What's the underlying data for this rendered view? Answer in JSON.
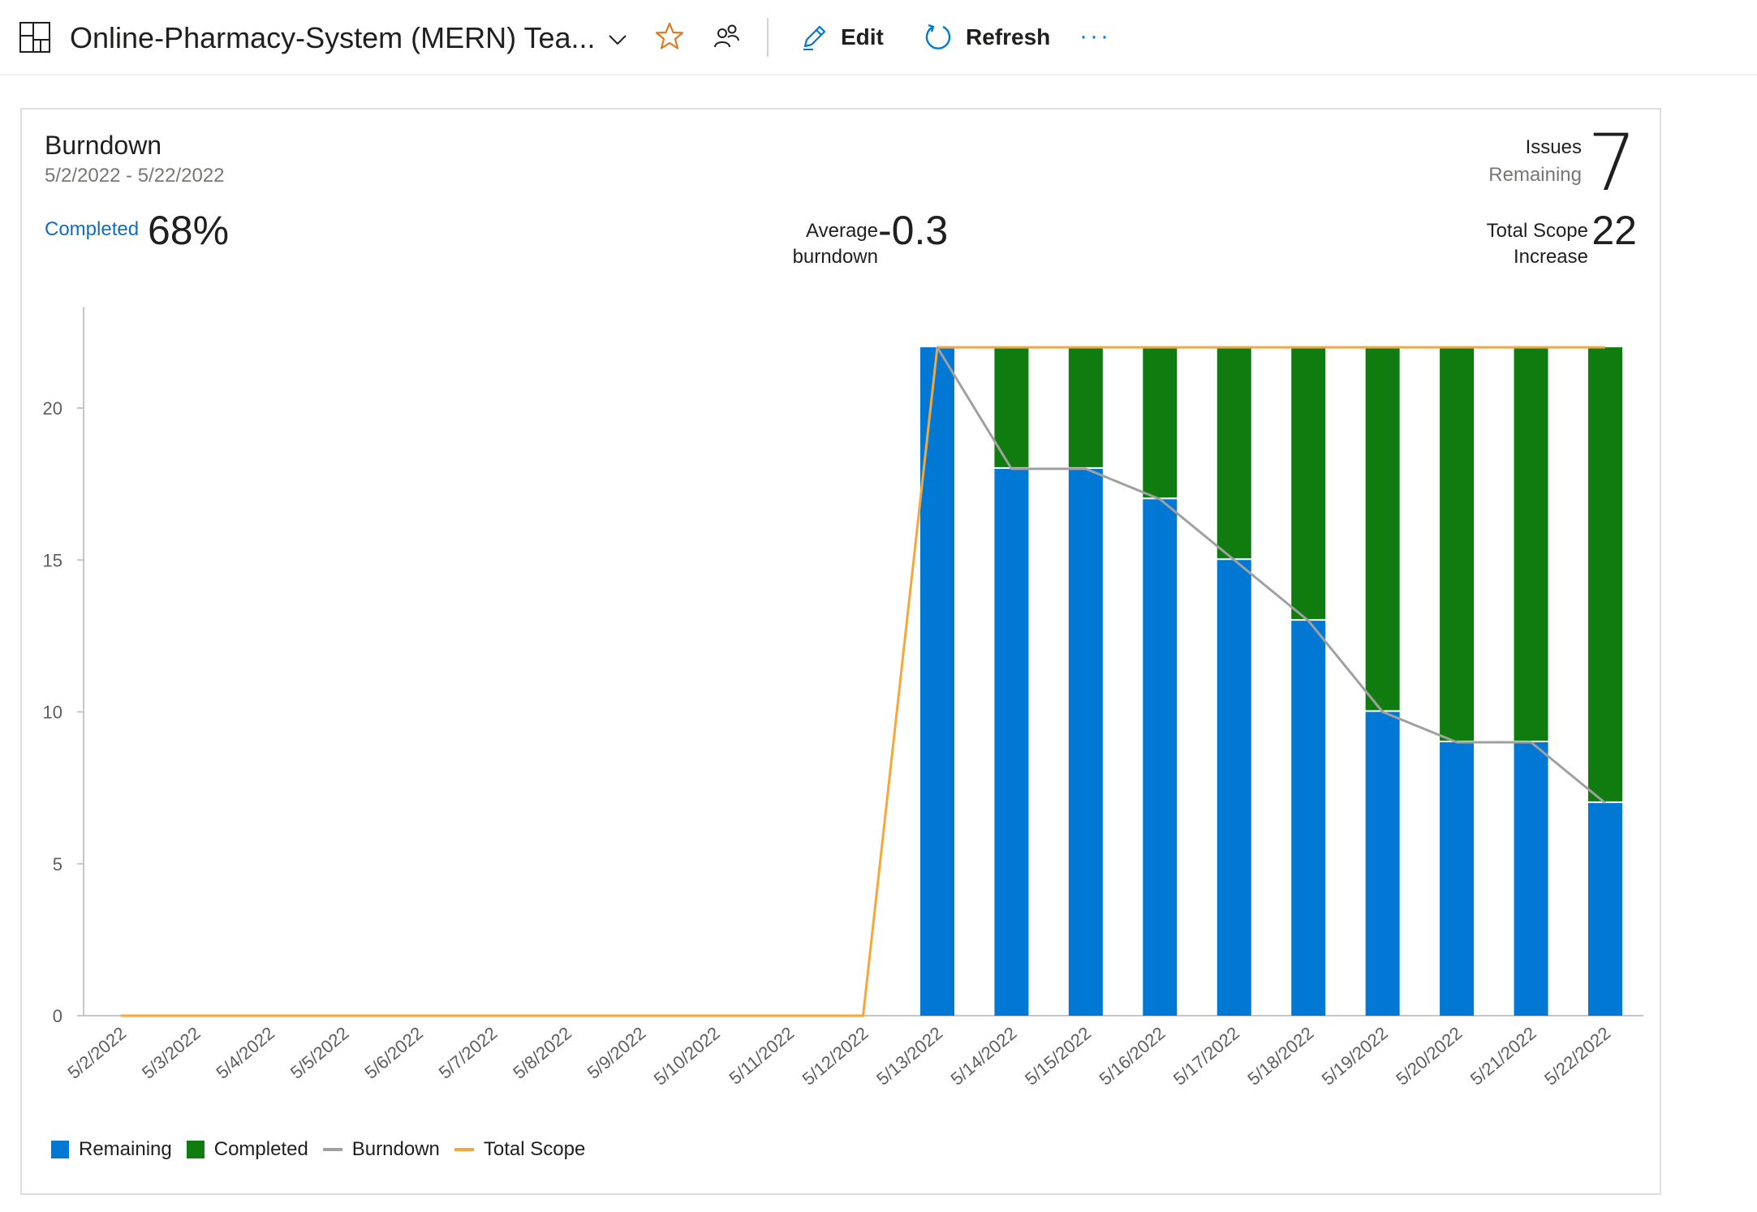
{
  "header": {
    "title": "Online-Pharmacy-System (MERN) Tea...",
    "edit_label": "Edit",
    "refresh_label": "Refresh",
    "more_label": "···"
  },
  "widget": {
    "title": "Burndown",
    "date_range": "5/2/2022 - 5/22/2022",
    "completed_label": "Completed",
    "completed_value": "68%",
    "avg_label_1": "Average",
    "avg_label_2": "burndown",
    "avg_value": "-0.3",
    "issues_label_1": "Issues",
    "issues_label_2": "Remaining",
    "issues_value": "7",
    "scope_label_1": "Total Scope",
    "scope_label_2": "Increase",
    "scope_value": "22"
  },
  "colors": {
    "remaining": "#0078d4",
    "completed": "#107c10",
    "burndown": "#a0a0a0",
    "total_scope": "#f7a737",
    "accent": "#0078d4",
    "star": "#e07a1f"
  },
  "chart_data": {
    "type": "bar",
    "stacked": true,
    "categories": [
      "5/2/2022",
      "5/3/2022",
      "5/4/2022",
      "5/5/2022",
      "5/6/2022",
      "5/7/2022",
      "5/8/2022",
      "5/9/2022",
      "5/10/2022",
      "5/11/2022",
      "5/12/2022",
      "5/13/2022",
      "5/14/2022",
      "5/15/2022",
      "5/16/2022",
      "5/17/2022",
      "5/18/2022",
      "5/19/2022",
      "5/20/2022",
      "5/21/2022",
      "5/22/2022"
    ],
    "series": [
      {
        "name": "Remaining",
        "type": "bar",
        "values": [
          0,
          0,
          0,
          0,
          0,
          0,
          0,
          0,
          0,
          0,
          0,
          22,
          18,
          18,
          17,
          15,
          13,
          10,
          9,
          9,
          7
        ]
      },
      {
        "name": "Completed",
        "type": "bar",
        "values": [
          0,
          0,
          0,
          0,
          0,
          0,
          0,
          0,
          0,
          0,
          0,
          0,
          4,
          4,
          5,
          7,
          9,
          12,
          13,
          13,
          15
        ]
      },
      {
        "name": "Burndown",
        "type": "line",
        "values": [
          null,
          null,
          null,
          null,
          null,
          null,
          null,
          null,
          null,
          null,
          null,
          22,
          18,
          18,
          17,
          15,
          13,
          10,
          9,
          9,
          7
        ]
      },
      {
        "name": "Total Scope",
        "type": "line",
        "values": [
          0,
          0,
          0,
          0,
          0,
          0,
          0,
          0,
          0,
          0,
          0,
          22,
          22,
          22,
          22,
          22,
          22,
          22,
          22,
          22,
          22
        ]
      }
    ],
    "yticks": [
      0,
      5,
      10,
      15,
      20
    ],
    "ylim": [
      0,
      23
    ],
    "legend_position": "bottom-left",
    "grid": false
  }
}
